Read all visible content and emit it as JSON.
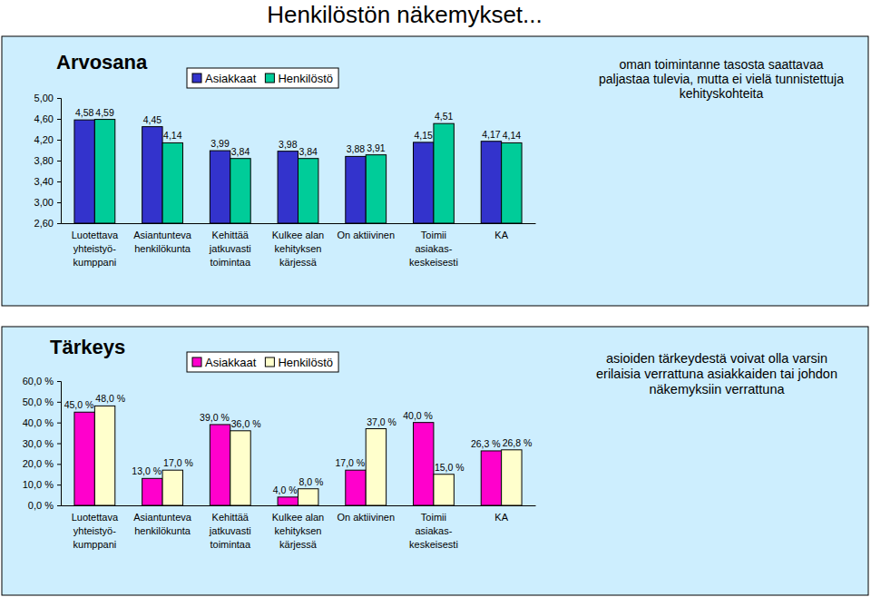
{
  "title": "Henkilöstön näkemykset...",
  "chart_data": [
    {
      "type": "bar",
      "title": "Arvosana",
      "categories": [
        "Luotettava\nyhteistyö-\nkumppani",
        "Asiantunteva\nhenkilökunta",
        "Kehittää\njatkuvasti\ntoimintaa",
        "Kulkee alan\nkehityksen\nkärjessä",
        "On aktiivinen",
        "Toimii\nasiakas-\nkeskeisesti",
        "KA"
      ],
      "series": [
        {
          "name": "Asiakkaat",
          "color": "#3333cc",
          "values": [
            4.58,
            4.45,
            3.99,
            3.98,
            3.88,
            4.15,
            4.17
          ],
          "value_labels": [
            "4,58",
            "4,45",
            "3,99",
            "3,98",
            "3,88",
            "4,15",
            "4,17"
          ]
        },
        {
          "name": "Henkilöstö",
          "color": "#00cc99",
          "values": [
            4.59,
            4.14,
            3.84,
            3.84,
            3.91,
            4.51,
            4.14
          ],
          "value_labels": [
            "4,59",
            "4,14",
            "3,84",
            "3,84",
            "3,91",
            "4,51",
            "4,14"
          ]
        }
      ],
      "ylim": [
        2.6,
        5.0
      ],
      "yticks": [
        {
          "value": 2.6,
          "label": "2,60"
        },
        {
          "value": 3.0,
          "label": "3,00"
        },
        {
          "value": 3.4,
          "label": "3,40"
        },
        {
          "value": 3.8,
          "label": "3,80"
        },
        {
          "value": 4.2,
          "label": "4,20"
        },
        {
          "value": 4.6,
          "label": "4,60"
        },
        {
          "value": 5.0,
          "label": "5,00"
        }
      ],
      "grid": false,
      "legend": "top",
      "data_labels": true,
      "annotations": [
        "oman toimintanne tasosta saattavaa\npaljastaa tulevia, mutta ei vielä tunnistettuja\nkehityskohteita"
      ]
    },
    {
      "type": "bar",
      "title": "Tärkeys",
      "categories": [
        "Luotettava\nyhteistyö-\nkumppani",
        "Asiantunteva\nhenkilökunta",
        "Kehittää\njatkuvasti\ntoimintaa",
        "Kulkee alan\nkehityksen\nkärjessä",
        "On aktiivinen",
        "Toimii\nasiakas-\nkeskeisesti",
        "KA"
      ],
      "series": [
        {
          "name": "Asiakkaat",
          "color": "#ff00cc",
          "values": [
            45.0,
            13.0,
            39.0,
            4.0,
            17.0,
            40.0,
            26.3
          ],
          "value_labels": [
            "45,0 %",
            "13,0 %",
            "39,0 %",
            "4,0 %",
            "17,0 %",
            "40,0 %",
            "26,3 %"
          ]
        },
        {
          "name": "Henkilöstö",
          "color": "#ffffcc",
          "values": [
            48.0,
            17.0,
            36.0,
            8.0,
            37.0,
            15.0,
            26.8
          ],
          "value_labels": [
            "48,0 %",
            "17,0 %",
            "36,0 %",
            "8,0 %",
            "37,0 %",
            "15,0 %",
            "26,8 %"
          ]
        }
      ],
      "ylim": [
        0,
        60
      ],
      "yticks": [
        {
          "value": 0,
          "label": "0,0 %"
        },
        {
          "value": 10,
          "label": "10,0 %"
        },
        {
          "value": 20,
          "label": "20,0 %"
        },
        {
          "value": 30,
          "label": "30,0 %"
        },
        {
          "value": 40,
          "label": "40,0 %"
        },
        {
          "value": 50,
          "label": "50,0 %"
        },
        {
          "value": 60,
          "label": "60,0 %"
        }
      ],
      "grid": false,
      "legend": "top",
      "data_labels": true,
      "annotations": [
        "asioiden tärkeydestä voivat olla varsin\nerilaisia verrattuna asiakkaiden tai johdon\nnäkemyksiin verrattuna"
      ]
    }
  ]
}
